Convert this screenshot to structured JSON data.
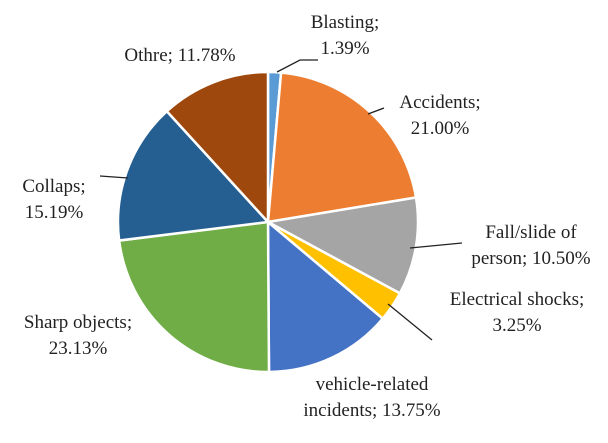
{
  "chart_data": {
    "type": "pie",
    "categories": [
      "Blasting",
      "Accidents",
      "Fall/slide of person",
      "Electrical shocks",
      "vehicle-related incidents",
      "Sharp objects",
      "Collaps",
      "Othre"
    ],
    "values": [
      1.39,
      21.0,
      10.5,
      3.25,
      13.75,
      23.13,
      15.19,
      11.78
    ],
    "value_labels": [
      "1.39%",
      "21.00%",
      "10.50%",
      "3.25%",
      "13.75%",
      "23.13%",
      "15.19%",
      "11.78%"
    ],
    "separator": ";",
    "colors": [
      "#5b9bd5",
      "#ed7d31",
      "#a5a5a5",
      "#ffc000",
      "#4472c4",
      "#70ad47",
      "#255e91",
      "#9e480e"
    ]
  }
}
